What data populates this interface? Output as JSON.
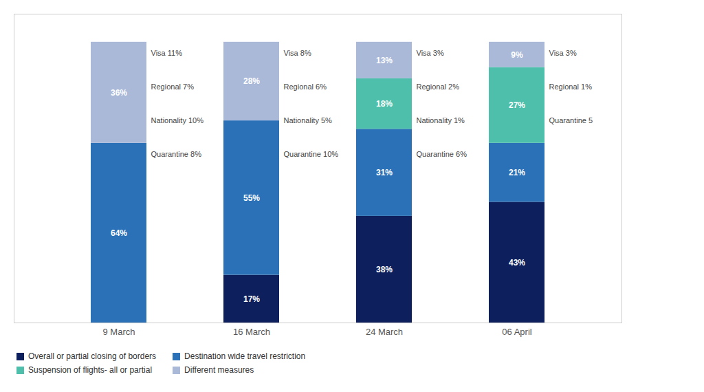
{
  "chart_data": {
    "type": "bar",
    "stacked": true,
    "categories": [
      "9 March",
      "16 March",
      "24 March",
      "06 April"
    ],
    "series": [
      {
        "name": "Overall or partial closing of borders",
        "color": "#0d1f5c",
        "values": [
          0,
          17,
          38,
          43
        ],
        "value_labels": [
          null,
          "17%",
          "38%",
          "43%"
        ]
      },
      {
        "name": "Destination wide travel restriction",
        "color": "#2b71b8",
        "values": [
          64,
          55,
          31,
          21
        ],
        "value_labels": [
          "64%",
          "55%",
          "31%",
          "21%"
        ]
      },
      {
        "name": "Suspension of flights- all or partial",
        "color": "#4dbfab",
        "values": [
          0,
          0,
          18,
          27
        ],
        "value_labels": [
          null,
          null,
          "18%",
          "27%"
        ]
      },
      {
        "name": "Different measures",
        "color": "#aab9d8",
        "values": [
          36,
          28,
          13,
          9
        ],
        "value_labels": [
          "36%",
          "28%",
          "13%",
          "9%"
        ]
      }
    ],
    "data_labels": true,
    "annotations": [
      [
        "Visa 11%",
        "Regional 7%",
        "Nationality 10%",
        "Quarantine 8%"
      ],
      [
        "Visa 8%",
        "Regional 6%",
        "Nationality 5%",
        "Quarantine 10%"
      ],
      [
        "Visa 3%",
        "Regional 2%",
        "Nationality 1%",
        "Quarantine 6%"
      ],
      [
        "Visa 3%",
        "Regional 1%",
        "Quarantine 5"
      ]
    ],
    "ylim": [
      0,
      110
    ],
    "tick_labels": "x",
    "grid": false,
    "legend": "lower left"
  }
}
